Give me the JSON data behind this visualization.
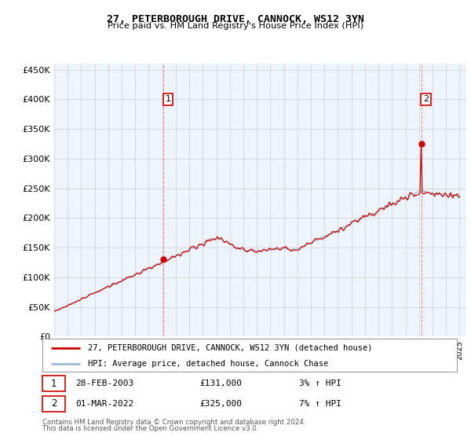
{
  "title": "27, PETERBOROUGH DRIVE, CANNOCK, WS12 3YN",
  "subtitle": "Price paid vs. HM Land Registry's House Price Index (HPI)",
  "ylabel_ticks": [
    "£0",
    "£50K",
    "£100K",
    "£150K",
    "£200K",
    "£250K",
    "£300K",
    "£350K",
    "£400K",
    "£450K"
  ],
  "ytick_values": [
    0,
    50000,
    100000,
    150000,
    200000,
    250000,
    300000,
    350000,
    400000,
    450000
  ],
  "ylim": [
    0,
    460000
  ],
  "sale1_date": "28-FEB-2003",
  "sale1_price_str": "£131,000",
  "sale1_price_val": 131000,
  "sale1_t": 2003.083,
  "sale1_hpi": "3% ↑ HPI",
  "sale2_date": "01-MAR-2022",
  "sale2_price_str": "£325,000",
  "sale2_price_val": 325000,
  "sale2_t": 2022.167,
  "sale2_hpi": "7% ↑ HPI",
  "legend_line1": "27, PETERBOROUGH DRIVE, CANNOCK, WS12 3YN (detached house)",
  "legend_line2": "HPI: Average price, detached house, Cannock Chase",
  "footer1": "Contains HM Land Registry data © Crown copyright and database right 2024.",
  "footer2": "This data is licensed under the Open Government Licence v3.0.",
  "hpi_color": "#a0b8d8",
  "price_color": "#cc0000",
  "vline_color": "#ff8888",
  "grid_color": "#cccccc",
  "chart_bg": "#eef4fb",
  "label_box_color": "#cc0000"
}
